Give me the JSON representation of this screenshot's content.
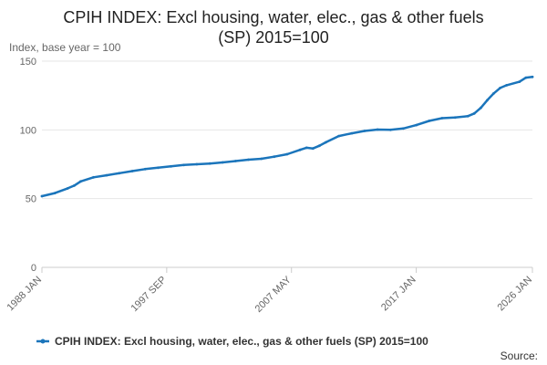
{
  "chart_data": {
    "type": "line",
    "title_line1": "CPIH INDEX: Excl housing, water, elec., gas & other fuels",
    "title_line2": "(SP) 2015=100",
    "ylabel": "Index, base year = 100",
    "ylim": [
      0,
      150
    ],
    "yticks": [
      0,
      50,
      100,
      150
    ],
    "xlim": [
      1988.0,
      2026.0
    ],
    "xticks": [
      {
        "label": "1988 JAN",
        "x": 1988.0
      },
      {
        "label": "1997 SEP",
        "x": 1997.667
      },
      {
        "label": "2007 MAY",
        "x": 2007.333
      },
      {
        "label": "2017 JAN",
        "x": 2017.0
      },
      {
        "label": "2026 JAN",
        "x": 2026.0
      }
    ],
    "grid": true,
    "legend_position": "bottom",
    "source_label": "Source:",
    "colors": {
      "series": "#1b75bb",
      "grid": "#e6e6e6",
      "axis": "#cccccc"
    },
    "series": [
      {
        "name": "CPIH INDEX: Excl housing, water, elec., gas & other fuels (SP) 2015=100",
        "x": [
          1988.0,
          1989.0,
          1990.0,
          1990.5,
          1991.0,
          1992.0,
          1993.0,
          1994.0,
          1995.0,
          1996.0,
          1997.0,
          1998.0,
          1999.0,
          2000.0,
          2001.0,
          2002.0,
          2003.0,
          2004.0,
          2005.0,
          2006.0,
          2007.0,
          2008.0,
          2008.5,
          2009.0,
          2009.5,
          2010.0,
          2011.0,
          2012.0,
          2013.0,
          2014.0,
          2015.0,
          2016.0,
          2017.0,
          2018.0,
          2019.0,
          2020.0,
          2021.0,
          2021.5,
          2022.0,
          2022.5,
          2023.0,
          2023.5,
          2024.0,
          2025.0,
          2025.5,
          2026.0
        ],
        "values": [
          51.8,
          54.0,
          57.5,
          59.5,
          62.5,
          65.5,
          67.0,
          68.5,
          70.0,
          71.5,
          72.5,
          73.5,
          74.5,
          75.0,
          75.5,
          76.3,
          77.3,
          78.3,
          79.0,
          80.5,
          82.3,
          85.5,
          87.0,
          86.5,
          88.5,
          91.0,
          95.5,
          97.5,
          99.2,
          100.2,
          100.0,
          101.0,
          103.5,
          106.5,
          108.5,
          109.0,
          110.0,
          112.0,
          116.0,
          121.5,
          126.5,
          130.5,
          132.5,
          135.0,
          138.0,
          138.5
        ]
      }
    ]
  }
}
